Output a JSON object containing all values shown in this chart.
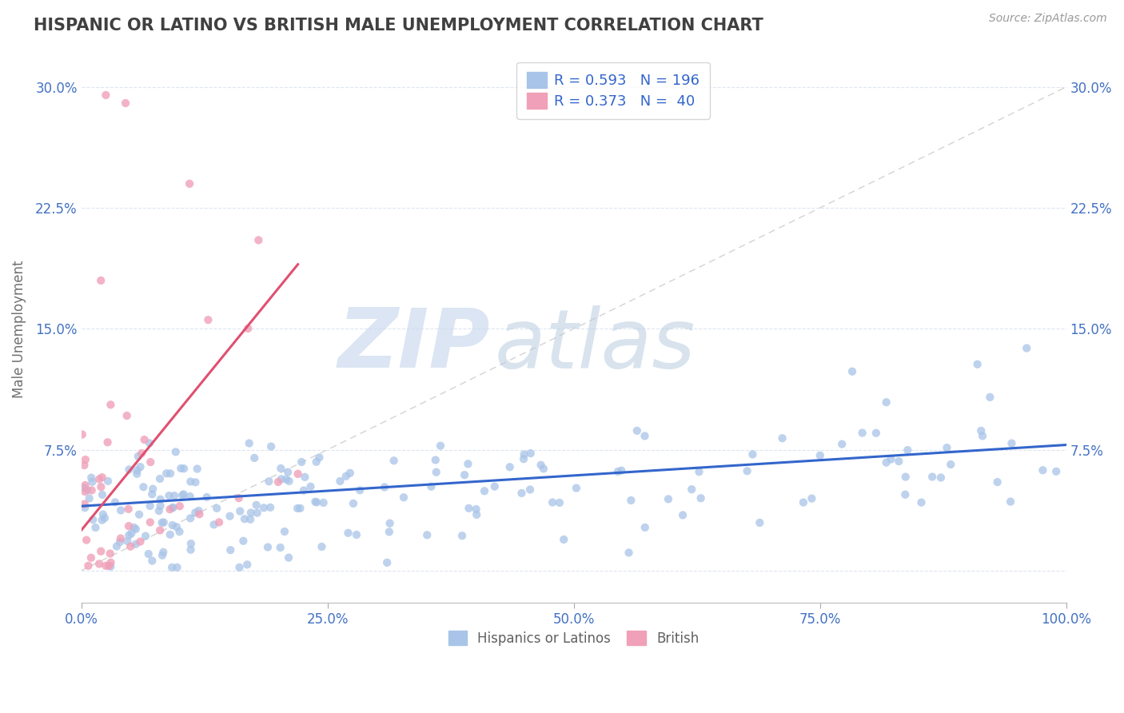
{
  "title": "HISPANIC OR LATINO VS BRITISH MALE UNEMPLOYMENT CORRELATION CHART",
  "source": "Source: ZipAtlas.com",
  "ylabel": "Male Unemployment",
  "xlim": [
    0.0,
    100.0
  ],
  "ylim": [
    -2.0,
    32.0
  ],
  "yticks": [
    0.0,
    7.5,
    15.0,
    22.5,
    30.0
  ],
  "ytick_labels": [
    "",
    "7.5%",
    "15.0%",
    "22.5%",
    "30.0%"
  ],
  "xticks": [
    0.0,
    25.0,
    50.0,
    75.0,
    100.0
  ],
  "xtick_labels": [
    "0.0%",
    "25.0%",
    "50.0%",
    "75.0%",
    "100.0%"
  ],
  "blue_color": "#a8c4e8",
  "pink_color": "#f0a0b8",
  "blue_line_color": "#3366cc",
  "pink_line_color": "#e05070",
  "ref_line_color": "#c8c8c8",
  "legend_blue_label": "R = 0.593   N = 196",
  "legend_pink_label": "R = 0.373   N =  40",
  "legend_text_color": "#3366cc",
  "watermark_zip": "ZIP",
  "watermark_atlas": "atlas",
  "watermark_color_zip": "#ccd8ee",
  "watermark_color_atlas": "#b8cce8",
  "background_color": "#ffffff",
  "grid_color": "#dde5f0",
  "title_color": "#404040",
  "axis_label_color": "#707070",
  "tick_color": "#4472c4",
  "bottom_legend_color": "#606060"
}
